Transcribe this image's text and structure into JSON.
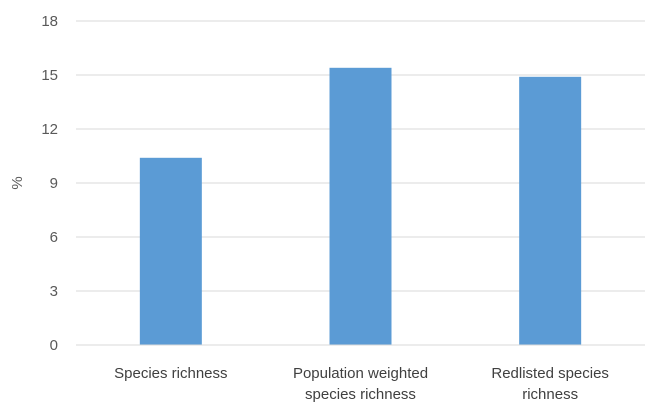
{
  "chart_data": {
    "type": "bar",
    "title": "",
    "xlabel": "",
    "ylabel": "%",
    "categories": [
      [
        "Species richness"
      ],
      [
        "Population weighted",
        "species richness"
      ],
      [
        "Redlisted species",
        "richness"
      ]
    ],
    "values": [
      10.4,
      15.4,
      14.9
    ],
    "ylim": [
      0,
      18
    ],
    "yticks": [
      "0",
      "3",
      "6",
      "9",
      "12",
      "15",
      "18"
    ],
    "bar_color": "#5B9BD5",
    "grid": true,
    "legend": "none"
  }
}
